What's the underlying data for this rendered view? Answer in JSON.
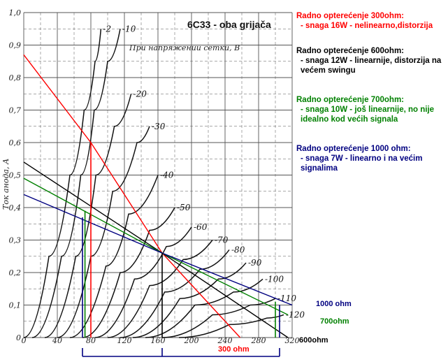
{
  "chart_data": {
    "type": "line",
    "title": "6C33 - oba grijača",
    "subtitle": "При напряжении сетки, В",
    "ylabel": "Ток анода, А",
    "x_ticks": [
      "0",
      "40",
      "80",
      "120",
      "160",
      "200",
      "240",
      "280",
      "320"
    ],
    "y_ticks": [
      "0",
      "0,1",
      "0,2",
      "0,3",
      "0,4",
      "0,5",
      "0,6",
      "0,7",
      "0,8",
      "0,9",
      "1,0"
    ],
    "xlim": [
      0,
      320
    ],
    "ylim": [
      0,
      1.0
    ],
    "grid": true,
    "curve_labels": [
      "-2",
      "-10",
      "-20",
      "-30",
      "-40",
      "-50",
      "-60",
      "-70",
      "-80",
      "-90",
      "-100",
      "-110",
      "-120"
    ],
    "grid_curves": [
      {
        "label": "-2",
        "points": [
          [
            0,
            0
          ],
          [
            30,
            0.25
          ],
          [
            55,
            0.5
          ],
          [
            72,
            0.7
          ],
          [
            85,
            0.85
          ],
          [
            92,
            0.95
          ]
        ]
      },
      {
        "label": "-10",
        "points": [
          [
            10,
            0
          ],
          [
            45,
            0.25
          ],
          [
            68,
            0.5
          ],
          [
            84,
            0.7
          ],
          [
            100,
            0.85
          ],
          [
            115,
            0.95
          ]
        ]
      },
      {
        "label": "-20",
        "points": [
          [
            25,
            0
          ],
          [
            62,
            0.25
          ],
          [
            86,
            0.5
          ],
          [
            108,
            0.65
          ],
          [
            128,
            0.75
          ]
        ]
      },
      {
        "label": "-30",
        "points": [
          [
            40,
            0
          ],
          [
            80,
            0.25
          ],
          [
            106,
            0.45
          ],
          [
            135,
            0.6
          ],
          [
            150,
            0.65
          ]
        ]
      },
      {
        "label": "-40",
        "points": [
          [
            55,
            0
          ],
          [
            98,
            0.22
          ],
          [
            125,
            0.38
          ],
          [
            160,
            0.5
          ]
        ]
      },
      {
        "label": "-50",
        "points": [
          [
            70,
            0
          ],
          [
            115,
            0.2
          ],
          [
            150,
            0.33
          ],
          [
            180,
            0.4
          ]
        ]
      },
      {
        "label": "-60",
        "points": [
          [
            85,
            0
          ],
          [
            132,
            0.18
          ],
          [
            170,
            0.28
          ],
          [
            200,
            0.34
          ]
        ]
      },
      {
        "label": "-70",
        "points": [
          [
            100,
            0
          ],
          [
            150,
            0.16
          ],
          [
            190,
            0.24
          ],
          [
            225,
            0.3
          ]
        ]
      },
      {
        "label": "-80",
        "points": [
          [
            115,
            0
          ],
          [
            168,
            0.14
          ],
          [
            210,
            0.21
          ],
          [
            245,
            0.27
          ]
        ]
      },
      {
        "label": "-90",
        "points": [
          [
            130,
            0
          ],
          [
            186,
            0.12
          ],
          [
            232,
            0.18
          ],
          [
            265,
            0.23
          ]
        ]
      },
      {
        "label": "-100",
        "points": [
          [
            145,
            0
          ],
          [
            204,
            0.1
          ],
          [
            250,
            0.14
          ],
          [
            285,
            0.18
          ]
        ]
      },
      {
        "label": "-110",
        "points": [
          [
            165,
            0
          ],
          [
            225,
            0.07
          ],
          [
            270,
            0.1
          ],
          [
            300,
            0.12
          ]
        ]
      },
      {
        "label": "-120",
        "points": [
          [
            185,
            0
          ],
          [
            245,
            0.04
          ],
          [
            290,
            0.06
          ],
          [
            310,
            0.07
          ]
        ]
      }
    ],
    "series": [
      {
        "name": "300 ohm",
        "color": "#ff0000",
        "points": [
          [
            0,
            0.87
          ],
          [
            80,
            0.6
          ],
          [
            165,
            0.26
          ],
          [
            258,
            0
          ]
        ]
      },
      {
        "name": "600ohm",
        "color": "#000000",
        "points": [
          [
            0,
            0.54
          ],
          [
            165,
            0.26
          ],
          [
            315,
            0
          ]
        ]
      },
      {
        "name": "700ohm",
        "color": "#008000",
        "points": [
          [
            0,
            0.49
          ],
          [
            165,
            0.26
          ],
          [
            315,
            0.07
          ]
        ]
      },
      {
        "name": "1000 ohm",
        "color": "#000080",
        "points": [
          [
            0,
            0.44
          ],
          [
            165,
            0.26
          ],
          [
            320,
            0.1
          ]
        ]
      }
    ],
    "vertical_markers": [
      {
        "color": "#008000",
        "x": 73,
        "y": 0.39
      },
      {
        "color": "#ff0000",
        "x": 80,
        "y": 0.6
      },
      {
        "color": "#000080",
        "x": 70,
        "y": 0.37
      },
      {
        "color": "#000000",
        "x": 165,
        "y": 0.26
      },
      {
        "color": "#000080",
        "x": 305,
        "y": 0.1
      },
      {
        "color": "#008000",
        "x": 300,
        "y": 0.11
      }
    ]
  },
  "notes": [
    {
      "color": "#ff0000",
      "heading": "Radno opterećenje 300ohm:",
      "body": "- snaga 16W - nelinearno,distorzija"
    },
    {
      "color": "#000000",
      "heading": "Radno opterećenje 600ohm:",
      "body": "- snaga 12W - linearnije, distorzija na većem swingu"
    },
    {
      "color": "#008000",
      "heading": "Radno opterećenje 700ohm:",
      "body": "- snaga 10W - još linearnije, no nije idealno kod većih signala"
    },
    {
      "color": "#000080",
      "heading": "Radno opterećenje 1000 ohm:",
      "body": "- snaga 7W - linearno i na većim signalima"
    }
  ]
}
